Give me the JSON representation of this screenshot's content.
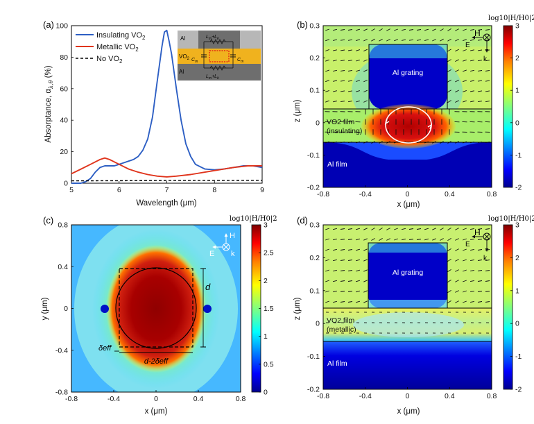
{
  "panels": {
    "a": "(a)",
    "b": "(b)",
    "c": "(c)",
    "d": "(d)"
  },
  "chart_data": [
    {
      "id": "a",
      "type": "line",
      "xlabel": "Wavelength (μm)",
      "ylabel": "Absorptance, α",
      "ylabel_sub": "λ,θ",
      "ylabel_unit": " (%)",
      "xlim": [
        5,
        9
      ],
      "ylim": [
        0,
        100
      ],
      "xticks": [
        "5",
        "6",
        "7",
        "8",
        "9"
      ],
      "yticks": [
        "0",
        "20",
        "40",
        "60",
        "80",
        "100"
      ],
      "legend_position": "top-left",
      "series": [
        {
          "name": "Insulating VO",
          "name_sub": "2",
          "color": "#2d5fc4",
          "style": "solid",
          "points": [
            [
              5,
              0
            ],
            [
              5.2,
              0
            ],
            [
              5.3,
              1
            ],
            [
              5.4,
              3
            ],
            [
              5.5,
              7
            ],
            [
              5.6,
              10
            ],
            [
              5.7,
              11
            ],
            [
              5.8,
              11
            ],
            [
              5.9,
              11
            ],
            [
              6.0,
              12
            ],
            [
              6.1,
              13
            ],
            [
              6.2,
              14
            ],
            [
              6.3,
              15
            ],
            [
              6.4,
              17
            ],
            [
              6.5,
              21
            ],
            [
              6.6,
              28
            ],
            [
              6.7,
              42
            ],
            [
              6.8,
              65
            ],
            [
              6.9,
              87
            ],
            [
              6.95,
              96
            ],
            [
              7.0,
              97
            ],
            [
              7.05,
              90
            ],
            [
              7.1,
              82
            ],
            [
              7.2,
              60
            ],
            [
              7.3,
              40
            ],
            [
              7.4,
              25
            ],
            [
              7.5,
              17
            ],
            [
              7.6,
              12
            ],
            [
              7.8,
              9
            ],
            [
              8.0,
              8.5
            ],
            [
              8.2,
              9
            ],
            [
              8.4,
              10
            ],
            [
              8.6,
              11
            ],
            [
              8.8,
              11
            ],
            [
              9.0,
              10
            ]
          ]
        },
        {
          "name": "Metallic VO",
          "name_sub": "2",
          "color": "#e0341c",
          "style": "solid",
          "points": [
            [
              5,
              6
            ],
            [
              5.2,
              9
            ],
            [
              5.4,
              12
            ],
            [
              5.6,
              15
            ],
            [
              5.7,
              16
            ],
            [
              5.8,
              15
            ],
            [
              6.0,
              12
            ],
            [
              6.2,
              9
            ],
            [
              6.4,
              7
            ],
            [
              6.6,
              5.5
            ],
            [
              6.8,
              4.5
            ],
            [
              7.0,
              4
            ],
            [
              7.2,
              4.5
            ],
            [
              7.5,
              5.5
            ],
            [
              7.8,
              7
            ],
            [
              8.1,
              8.5
            ],
            [
              8.4,
              10
            ],
            [
              8.7,
              11
            ],
            [
              9.0,
              11
            ]
          ]
        },
        {
          "name": "No VO",
          "name_sub": "2",
          "color": "#000000",
          "style": "dashed",
          "points": [
            [
              5,
              1.5
            ],
            [
              6,
              1.6
            ],
            [
              7,
              1.7
            ],
            [
              8,
              1.7
            ],
            [
              9,
              1.8
            ]
          ]
        }
      ],
      "inset": {
        "labels": [
          "Al",
          "VO",
          "Al",
          "C",
          "C",
          "L",
          "L",
          "L",
          "L"
        ],
        "vo_sub": "2",
        "cap_sub": "m",
        "lm_sub": "m",
        "lk_sub": "k",
        "plus": "+",
        "rows": [
          "Lm+Lk",
          "Lm+Lk"
        ]
      }
    },
    {
      "id": "b",
      "type": "heatmap",
      "xlabel": "x (μm)",
      "ylabel": "z (μm)",
      "xlim": [
        -0.8,
        0.8
      ],
      "ylim": [
        -0.2,
        0.3
      ],
      "xticks": [
        "-0.8",
        "-0.4",
        "0",
        "0.4",
        "0.8"
      ],
      "yticks": [
        "-0.2",
        "-0.1",
        "0",
        "0.1",
        "0.2",
        "0.3"
      ],
      "colorbar_ticks": [
        "3",
        "2",
        "1",
        "0",
        "-1",
        "-2"
      ],
      "colorbar_range": [
        -2,
        3
      ],
      "colorbar_title": "log10|H/H0|2",
      "regions": [
        "Al grating",
        "VO2 film",
        "(insulating)",
        "Al film"
      ],
      "axes_glyphs": [
        "H",
        "E",
        "k"
      ]
    },
    {
      "id": "c",
      "type": "heatmap",
      "xlabel": "x (μm)",
      "ylabel": "y (μm)",
      "xlim": [
        -0.8,
        0.8
      ],
      "ylim": [
        -0.8,
        0.8
      ],
      "xticks": [
        "-0.8",
        "-0.4",
        "0",
        "0.4",
        "0.8"
      ],
      "yticks": [
        "-0.8",
        "-0.4",
        "0",
        "0.4",
        "0.8"
      ],
      "colorbar_ticks": [
        "3",
        "2.5",
        "2",
        "1.5",
        "1",
        "0.5",
        "0"
      ],
      "colorbar_range": [
        0,
        3
      ],
      "colorbar_title": "log10|H/H0|2",
      "annotations": [
        "d",
        "δeff",
        "d-2δeff"
      ],
      "axes_glyphs": [
        "H",
        "E",
        "k"
      ]
    },
    {
      "id": "d",
      "type": "heatmap",
      "xlabel": "x (μm)",
      "ylabel": "z (μm)",
      "xlim": [
        -0.8,
        0.8
      ],
      "ylim": [
        -0.2,
        0.3
      ],
      "xticks": [
        "-0.8",
        "-0.4",
        "0",
        "0.4",
        "0.8"
      ],
      "yticks": [
        "-0.2",
        "-0.1",
        "0",
        "0.1",
        "0.2",
        "0.3"
      ],
      "colorbar_ticks": [
        "3",
        "2",
        "1",
        "0",
        "-1",
        "-2"
      ],
      "colorbar_range": [
        -2,
        3
      ],
      "colorbar_title": "log10|H/H0|2",
      "regions": [
        "Al grating",
        "VO2 film",
        "(metallic)",
        "Al film"
      ],
      "axes_glyphs": [
        "H",
        "E",
        "k"
      ]
    }
  ],
  "colors": {
    "jet": [
      "#00008f",
      "#0000ff",
      "#0080ff",
      "#00ffff",
      "#80ff80",
      "#ffff00",
      "#ff8000",
      "#ff0000",
      "#800000"
    ]
  }
}
